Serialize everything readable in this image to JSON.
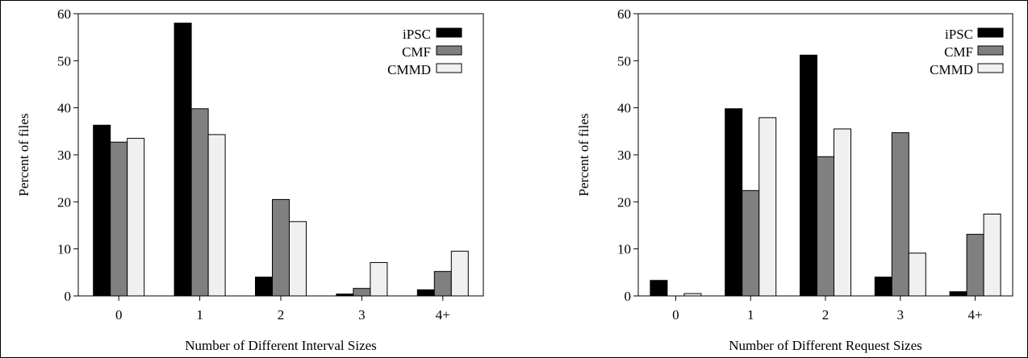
{
  "chart_data": [
    {
      "type": "bar",
      "xlabel": "Number of Different Interval Sizes",
      "ylabel": "Percent of files",
      "ylim": [
        0,
        60
      ],
      "yticks": [
        "0",
        "10",
        "20",
        "30",
        "40",
        "50",
        "60"
      ],
      "categories": [
        "0",
        "1",
        "2",
        "3",
        "4+"
      ],
      "legend_position": "top-right",
      "series": [
        {
          "name": "iPSC",
          "color": "#000000",
          "values": [
            36.3,
            58.0,
            4.0,
            0.4,
            1.3
          ]
        },
        {
          "name": "CMF",
          "color": "#808080",
          "values": [
            32.7,
            39.8,
            20.5,
            1.6,
            5.2
          ]
        },
        {
          "name": "CMMD",
          "color": "#f0f0f0",
          "values": [
            33.5,
            34.3,
            15.8,
            7.1,
            9.5
          ]
        }
      ]
    },
    {
      "type": "bar",
      "xlabel": "Number of Different Request Sizes",
      "ylabel": "Percent of files",
      "ylim": [
        0,
        60
      ],
      "yticks": [
        "0",
        "10",
        "20",
        "30",
        "40",
        "50",
        "60"
      ],
      "categories": [
        "0",
        "1",
        "2",
        "3",
        "4+"
      ],
      "legend_position": "top-right",
      "series": [
        {
          "name": "iPSC",
          "color": "#000000",
          "values": [
            3.3,
            39.8,
            51.2,
            4.0,
            0.9
          ]
        },
        {
          "name": "CMF",
          "color": "#808080",
          "values": [
            0.0,
            22.4,
            29.6,
            34.7,
            13.1
          ]
        },
        {
          "name": "CMMD",
          "color": "#f0f0f0",
          "values": [
            0.5,
            37.9,
            35.5,
            9.1,
            17.4
          ]
        }
      ]
    }
  ]
}
